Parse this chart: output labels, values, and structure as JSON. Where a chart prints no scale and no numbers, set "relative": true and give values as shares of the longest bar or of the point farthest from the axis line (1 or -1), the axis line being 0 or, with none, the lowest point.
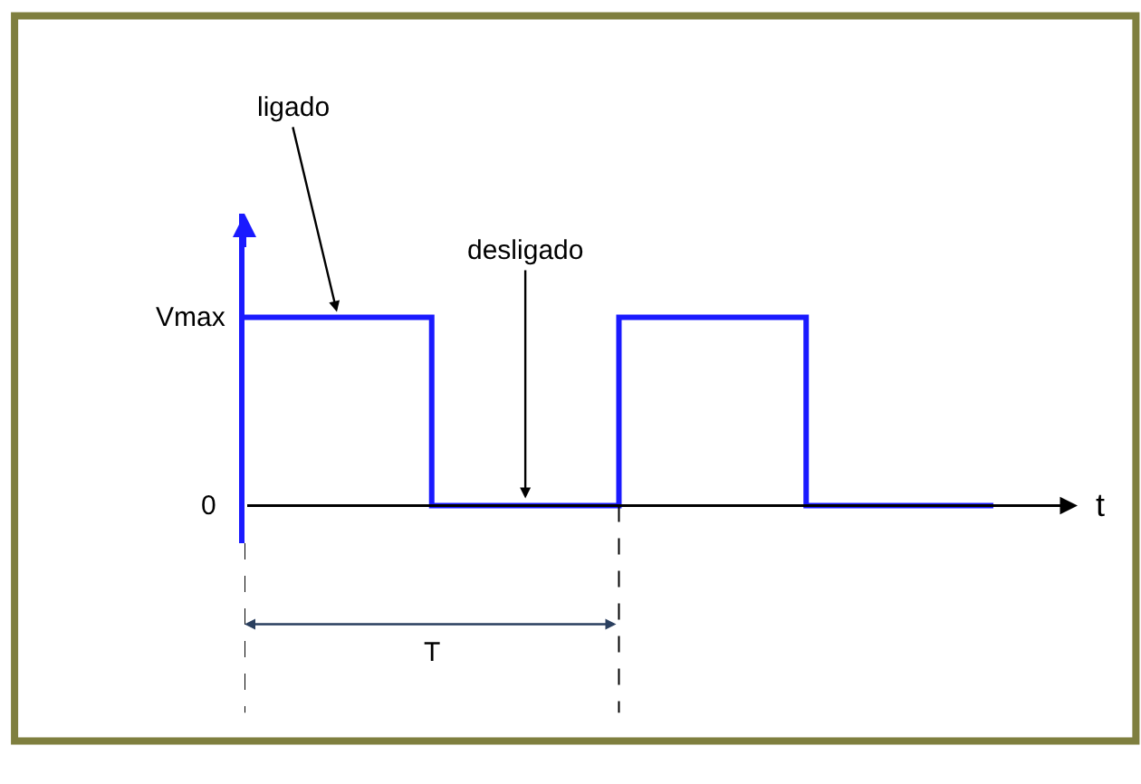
{
  "chart_data": {
    "type": "step",
    "relative": true,
    "categories": [
      null,
      null,
      null,
      null,
      null
    ],
    "series": [
      {
        "color": "#1a1aff",
        "values": [
          1,
          0,
          1,
          0,
          0
        ]
      }
    ],
    "xlabel": "t",
    "line_style": "solid",
    "annotations": [
      "ligado",
      {
        "text": "desligado",
        "y": 0
      },
      "T",
      "Vmax",
      "0"
    ]
  }
}
